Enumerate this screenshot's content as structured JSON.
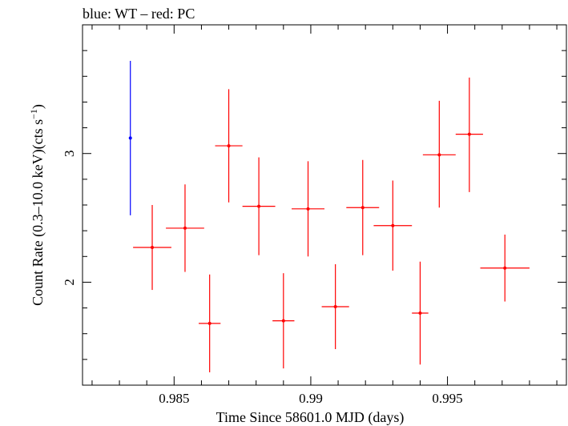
{
  "chart_data": {
    "type": "scatter",
    "title": "blue: WT – red: PC",
    "xlabel": "Time Since 58601.0 MJD (days)",
    "ylabel_main": "Count Rate (0.3–10.0 keV)(cts s",
    "ylabel_sup": "−1",
    "ylabel_end": ")",
    "xlim": [
      0.98165,
      0.99935
    ],
    "ylim": [
      1.2,
      4.0
    ],
    "x_ticks": [
      0.985,
      0.99,
      0.995
    ],
    "x_tick_labels": [
      "0.985",
      "0.99",
      "0.995"
    ],
    "y_ticks": [
      2,
      3
    ],
    "y_tick_labels": [
      "2",
      "3"
    ],
    "grid": false,
    "series": [
      {
        "color": "#0000ff",
        "points": [
          {
            "x": 0.9834,
            "xerr": 0.0,
            "y": 3.12,
            "ylo": 2.52,
            "yhi": 3.72
          }
        ]
      },
      {
        "color": "#ff0000",
        "points": [
          {
            "x": 0.9842,
            "xerr": 0.0007,
            "y": 2.27,
            "ylo": 1.94,
            "yhi": 2.6
          },
          {
            "x": 0.9854,
            "xerr": 0.0007,
            "y": 2.42,
            "ylo": 2.08,
            "yhi": 2.76
          },
          {
            "x": 0.9863,
            "xerr": 0.0004,
            "y": 1.68,
            "ylo": 1.3,
            "yhi": 2.06
          },
          {
            "x": 0.987,
            "xerr": 0.0005,
            "y": 3.06,
            "ylo": 2.62,
            "yhi": 3.5
          },
          {
            "x": 0.9881,
            "xerr": 0.0006,
            "y": 2.59,
            "ylo": 2.21,
            "yhi": 2.97
          },
          {
            "x": 0.989,
            "xerr": 0.0004,
            "y": 1.7,
            "ylo": 1.33,
            "yhi": 2.07
          },
          {
            "x": 0.9899,
            "xerr": 0.0006,
            "y": 2.57,
            "ylo": 2.2,
            "yhi": 2.94
          },
          {
            "x": 0.9909,
            "xerr": 0.0005,
            "y": 1.81,
            "ylo": 1.48,
            "yhi": 2.14
          },
          {
            "x": 0.9919,
            "xerr": 0.0006,
            "y": 2.58,
            "ylo": 2.21,
            "yhi": 2.95
          },
          {
            "x": 0.993,
            "xerr": 0.0007,
            "y": 2.44,
            "ylo": 2.09,
            "yhi": 2.79
          },
          {
            "x": 0.994,
            "xerr": 0.0003,
            "y": 1.76,
            "ylo": 1.36,
            "yhi": 2.16
          },
          {
            "x": 0.9947,
            "xerr": 0.0006,
            "y": 2.99,
            "ylo": 2.58,
            "yhi": 3.41
          },
          {
            "x": 0.9958,
            "xerr": 0.0005,
            "y": 3.15,
            "ylo": 2.7,
            "yhi": 3.59
          },
          {
            "x": 0.9971,
            "xerr": 0.0009,
            "y": 2.11,
            "ylo": 1.85,
            "yhi": 2.37
          }
        ]
      }
    ]
  }
}
